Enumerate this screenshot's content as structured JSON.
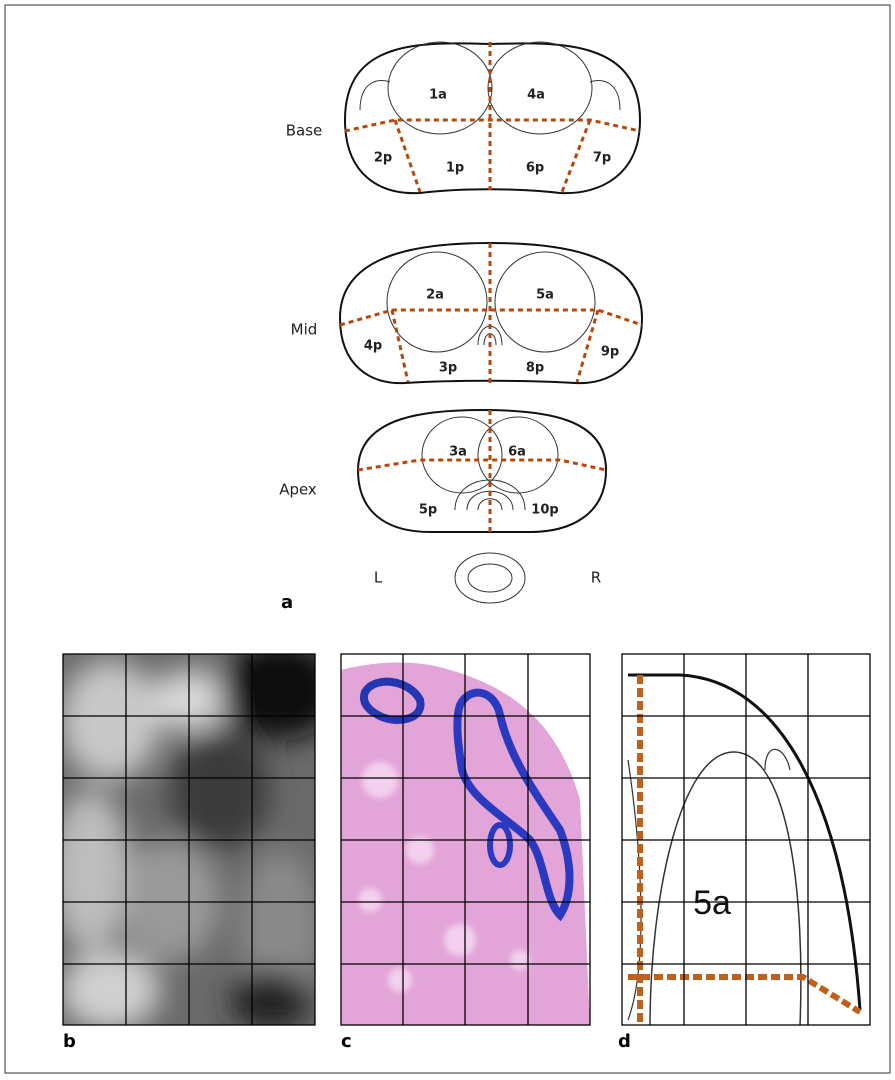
{
  "panel_a": {
    "label": "a",
    "base": {
      "name": "Base",
      "segments": [
        "1a",
        "4a",
        "2p",
        "1p",
        "6p",
        "7p"
      ]
    },
    "mid": {
      "name": "Mid",
      "segments": [
        "2a",
        "5a",
        "4p",
        "3p",
        "8p",
        "9p"
      ]
    },
    "apex": {
      "name": "Apex",
      "segments": [
        "3a",
        "6a",
        "5p",
        "10p"
      ]
    },
    "left": "L",
    "right": "R"
  },
  "panel_b": {
    "label": "b"
  },
  "panel_c": {
    "label": "c"
  },
  "panel_d": {
    "label": "d",
    "segment": "5a"
  }
}
